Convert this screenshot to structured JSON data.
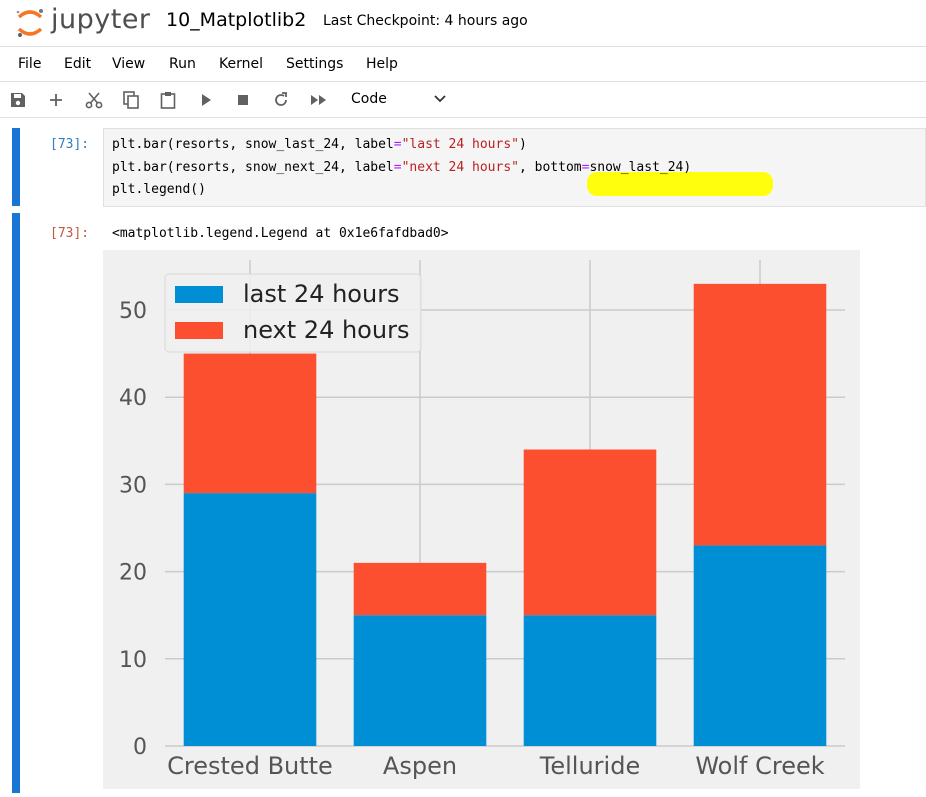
{
  "header": {
    "logo_text": "jupyter",
    "notebook_title": "10_Matplotlib2",
    "checkpoint": "Last Checkpoint: 4 hours ago"
  },
  "menu": [
    "File",
    "Edit",
    "View",
    "Run",
    "Kernel",
    "Settings",
    "Help"
  ],
  "toolbar": {
    "icons": [
      "save-icon",
      "add-icon",
      "cut-icon",
      "copy-icon",
      "paste-icon",
      "run-icon",
      "stop-icon",
      "restart-icon",
      "fast-forward-icon"
    ],
    "cell_type": "Code"
  },
  "cell": {
    "in_prompt": "[73]:",
    "out_prompt": "[73]:",
    "code": {
      "line1": {
        "call": "plt.bar(resorts, snow_last_24, label",
        "eq": "=",
        "str": "\"last 24 hours\"",
        "end": ")"
      },
      "line2": {
        "call": "plt.bar(resorts, snow_next_24, label",
        "eq": "=",
        "str": "\"next 24 hours\"",
        "mid": ", bottom",
        "eq2": "=",
        "end": "snow_last_24)"
      },
      "line3": "plt.legend()"
    },
    "output_text": "<matplotlib.legend.Legend at 0x1e6fafdbad0>"
  },
  "chart_data": {
    "type": "bar",
    "stacked": true,
    "categories": [
      "Crested Butte",
      "Aspen",
      "Telluride",
      "Wolf Creek"
    ],
    "series": [
      {
        "name": "last 24 hours",
        "values": [
          29,
          15,
          15,
          23
        ],
        "color": "#008fd5"
      },
      {
        "name": "next 24 hours",
        "values": [
          16,
          6,
          19,
          30
        ],
        "color": "#fc4f30"
      }
    ],
    "yticks": [
      0,
      10,
      20,
      30,
      40,
      50
    ],
    "ylim": [
      0,
      55
    ],
    "grid": true,
    "legend": "top-left",
    "background": "#f0f0f0"
  }
}
